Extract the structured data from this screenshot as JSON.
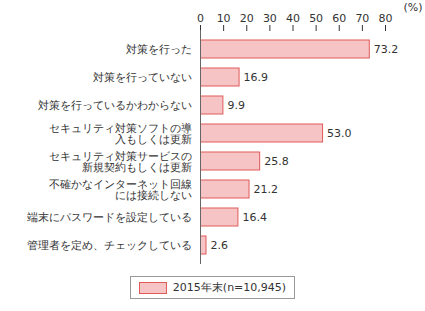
{
  "chart_data": {
    "type": "bar",
    "orientation": "horizontal",
    "categories": [
      "対策を行った",
      "対策を行っていない",
      "対策を行っているかわからない",
      "セキュリティ対策ソフトの導入もしくは更新",
      "セキュリティ対策サービスの新規契約もしくは更新",
      "不確かなインターネット回線には接続しない",
      "端末にパスワードを設定している",
      "管理者を定め、チェックしている"
    ],
    "series": [
      {
        "name": "2015年末(n=10,945)",
        "color": "#f6c4c4",
        "values": [
          73.2,
          16.9,
          9.9,
          53.0,
          25.8,
          21.2,
          16.4,
          2.6
        ],
        "value_labels": [
          "73.2",
          "16.9",
          "9.9",
          "53.0",
          "25.8",
          "21.2",
          "16.4",
          "2.6"
        ]
      }
    ],
    "xlabel": "(%)",
    "xlim": [
      0,
      80
    ],
    "xticks": [
      0,
      10,
      20,
      30,
      40,
      50,
      60,
      70,
      80
    ],
    "data_labels": true,
    "grid": false,
    "legend": "bottom"
  }
}
